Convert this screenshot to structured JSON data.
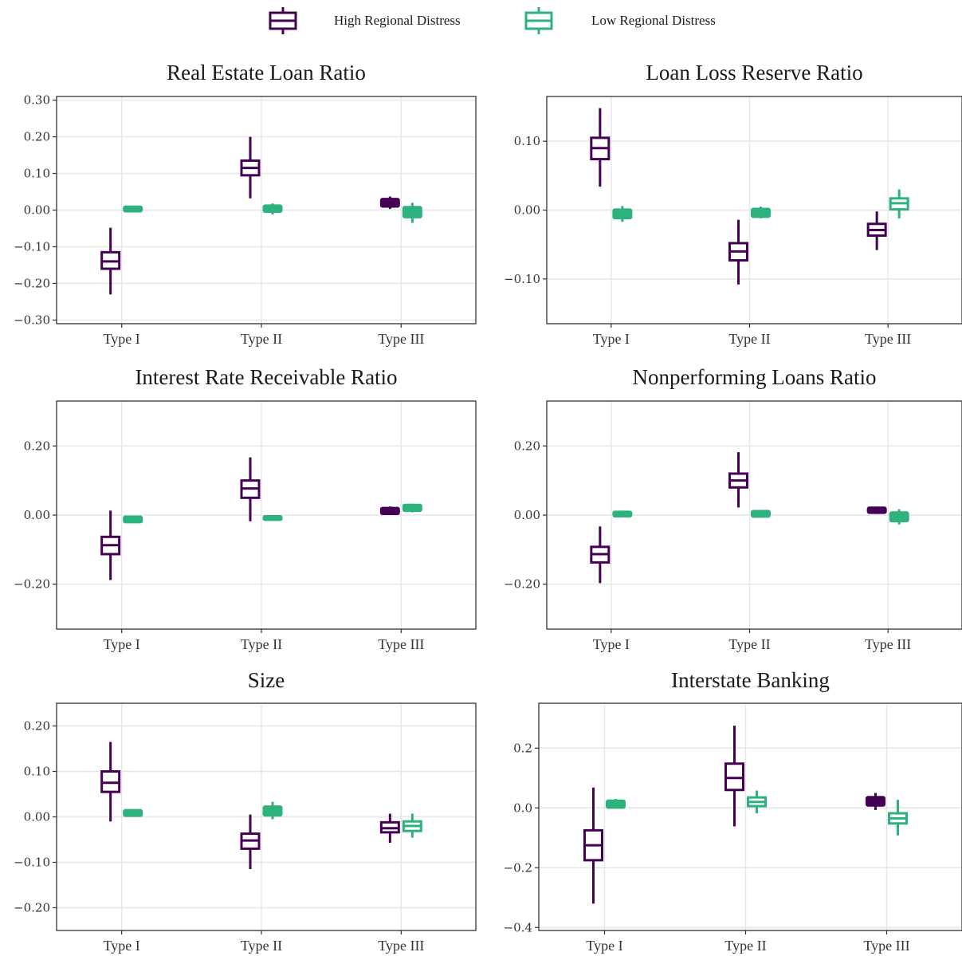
{
  "colors": {
    "high": "#440154",
    "low": "#2db27d",
    "grid": "#e6e6e6",
    "frame": "#333333"
  },
  "legend": [
    {
      "label": "High Regional Distress",
      "color": "#440154"
    },
    {
      "label": "Low Regional Distress",
      "color": "#2db27d"
    }
  ],
  "chart_data": [
    {
      "type": "boxplot",
      "title": "Real Estate Loan Ratio",
      "categories": [
        "Type I",
        "Type II",
        "Type III"
      ],
      "ylim": [
        -0.31,
        0.31
      ],
      "yticks": [
        -0.3,
        -0.2,
        -0.1,
        0.0,
        0.1,
        0.2,
        0.3
      ],
      "yticklabels": [
        "−0.30",
        "−0.20",
        "−0.10",
        "0.00",
        "0.10",
        "0.20",
        "0.30"
      ],
      "series": [
        {
          "name": "High Regional Distress",
          "boxes": [
            {
              "whislo": -0.23,
              "q1": -0.16,
              "med": -0.14,
              "q3": -0.115,
              "whishi": -0.048
            },
            {
              "whislo": 0.032,
              "q1": 0.095,
              "med": 0.115,
              "q3": 0.135,
              "whishi": 0.2
            },
            {
              "whislo": 0.003,
              "q1": 0.013,
              "med": 0.02,
              "q3": 0.027,
              "whishi": 0.037
            }
          ]
        },
        {
          "name": "Low Regional Distress",
          "boxes": [
            {
              "whislo": -0.004,
              "q1": 0.0,
              "med": 0.003,
              "q3": 0.006,
              "whishi": 0.01
            },
            {
              "whislo": -0.012,
              "q1": -0.001,
              "med": 0.004,
              "q3": 0.009,
              "whishi": 0.018
            },
            {
              "whislo": -0.035,
              "q1": -0.016,
              "med": -0.006,
              "q3": 0.005,
              "whishi": 0.02
            }
          ]
        }
      ]
    },
    {
      "type": "boxplot",
      "title": "Loan Loss Reserve Ratio",
      "categories": [
        "Type I",
        "Type II",
        "Type III"
      ],
      "ylim": [
        -0.165,
        0.165
      ],
      "yticks": [
        -0.1,
        0.0,
        0.1
      ],
      "yticklabels": [
        "−0.10",
        "0.00",
        "0.10"
      ],
      "series": [
        {
          "name": "High Regional Distress",
          "boxes": [
            {
              "whislo": 0.034,
              "q1": 0.074,
              "med": 0.09,
              "q3": 0.105,
              "whishi": 0.148
            },
            {
              "whislo": -0.108,
              "q1": -0.073,
              "med": -0.06,
              "q3": -0.048,
              "whishi": -0.014
            },
            {
              "whislo": -0.058,
              "q1": -0.037,
              "med": -0.029,
              "q3": -0.02,
              "whishi": -0.002
            }
          ]
        },
        {
          "name": "Low Regional Distress",
          "boxes": [
            {
              "whislo": -0.017,
              "q1": -0.01,
              "med": -0.005,
              "q3": -0.001,
              "whishi": 0.006
            },
            {
              "whislo": -0.012,
              "q1": -0.008,
              "med": -0.004,
              "q3": 0.0,
              "whishi": 0.005
            },
            {
              "whislo": -0.012,
              "q1": 0.001,
              "med": 0.01,
              "q3": 0.017,
              "whishi": 0.03
            }
          ]
        }
      ]
    },
    {
      "type": "boxplot",
      "title": "Interest Rate Receivable Ratio",
      "categories": [
        "Type I",
        "Type II",
        "Type III"
      ],
      "ylim": [
        -0.33,
        0.33
      ],
      "yticks": [
        -0.2,
        0.0,
        0.2
      ],
      "yticklabels": [
        "−0.20",
        "0.00",
        "0.20"
      ],
      "series": [
        {
          "name": "High Regional Distress",
          "boxes": [
            {
              "whislo": -0.188,
              "q1": -0.113,
              "med": -0.087,
              "q3": -0.063,
              "whishi": 0.013
            },
            {
              "whislo": -0.018,
              "q1": 0.05,
              "med": 0.077,
              "q3": 0.1,
              "whishi": 0.167
            },
            {
              "whislo": 0.0,
              "q1": 0.007,
              "med": 0.012,
              "q3": 0.017,
              "whishi": 0.025
            }
          ]
        },
        {
          "name": "Low Regional Distress",
          "boxes": [
            {
              "whislo": -0.02,
              "q1": -0.017,
              "med": -0.013,
              "q3": -0.008,
              "whishi": -0.002
            },
            {
              "whislo": -0.012,
              "q1": -0.01,
              "med": -0.009,
              "q3": -0.007,
              "whishi": -0.006
            },
            {
              "whislo": 0.008,
              "q1": 0.016,
              "med": 0.021,
              "q3": 0.026,
              "whishi": 0.033
            }
          ]
        }
      ]
    },
    {
      "type": "boxplot",
      "title": "Nonperforming Loans Ratio",
      "categories": [
        "Type I",
        "Type II",
        "Type III"
      ],
      "ylim": [
        -0.33,
        0.33
      ],
      "yticks": [
        -0.2,
        0.0,
        0.2
      ],
      "yticklabels": [
        "−0.20",
        "0.00",
        "0.20"
      ],
      "series": [
        {
          "name": "High Regional Distress",
          "boxes": [
            {
              "whislo": -0.197,
              "q1": -0.137,
              "med": -0.113,
              "q3": -0.092,
              "whishi": -0.033
            },
            {
              "whislo": 0.022,
              "q1": 0.08,
              "med": 0.1,
              "q3": 0.12,
              "whishi": 0.182
            },
            {
              "whislo": 0.006,
              "q1": 0.01,
              "med": 0.014,
              "q3": 0.018,
              "whishi": 0.023
            }
          ]
        },
        {
          "name": "Low Regional Distress",
          "boxes": [
            {
              "whislo": -0.003,
              "q1": 0.0,
              "med": 0.003,
              "q3": 0.006,
              "whishi": 0.01
            },
            {
              "whislo": -0.007,
              "q1": -0.001,
              "med": 0.004,
              "q3": 0.008,
              "whishi": 0.013
            },
            {
              "whislo": -0.027,
              "q1": -0.014,
              "med": -0.005,
              "q3": 0.004,
              "whishi": 0.017
            }
          ]
        }
      ]
    },
    {
      "type": "boxplot",
      "title": "Size",
      "categories": [
        "Type I",
        "Type II",
        "Type III"
      ],
      "ylim": [
        -0.25,
        0.25
      ],
      "yticks": [
        -0.2,
        -0.1,
        0.0,
        0.1,
        0.2
      ],
      "yticklabels": [
        "−0.20",
        "−0.10",
        "0.00",
        "0.10",
        "0.20"
      ],
      "series": [
        {
          "name": "High Regional Distress",
          "boxes": [
            {
              "whislo": -0.01,
              "q1": 0.055,
              "med": 0.075,
              "q3": 0.1,
              "whishi": 0.165
            },
            {
              "whislo": -0.115,
              "q1": -0.07,
              "med": -0.052,
              "q3": -0.037,
              "whishi": 0.005
            },
            {
              "whislo": -0.057,
              "q1": -0.034,
              "med": -0.025,
              "q3": -0.012,
              "whishi": 0.007
            }
          ]
        },
        {
          "name": "Low Regional Distress",
          "boxes": [
            {
              "whislo": 0.002,
              "q1": 0.005,
              "med": 0.008,
              "q3": 0.012,
              "whishi": 0.016
            },
            {
              "whislo": -0.005,
              "q1": 0.006,
              "med": 0.014,
              "q3": 0.02,
              "whishi": 0.033
            },
            {
              "whislo": -0.046,
              "q1": -0.031,
              "med": -0.02,
              "q3": -0.01,
              "whishi": 0.007
            }
          ]
        }
      ]
    },
    {
      "type": "boxplot",
      "title": "Interstate Banking",
      "categories": [
        "Type I",
        "Type II",
        "Type III"
      ],
      "ylim": [
        -0.41,
        0.35
      ],
      "yticks": [
        -0.4,
        -0.2,
        0.0,
        0.2
      ],
      "yticklabels": [
        "−0.4",
        "−0.2",
        "0.0",
        "0.2"
      ],
      "series": [
        {
          "name": "High Regional Distress",
          "boxes": [
            {
              "whislo": -0.32,
              "q1": -0.175,
              "med": -0.125,
              "q3": -0.075,
              "whishi": 0.068
            },
            {
              "whislo": -0.062,
              "q1": 0.06,
              "med": 0.1,
              "q3": 0.148,
              "whishi": 0.275
            },
            {
              "whislo": -0.007,
              "q1": 0.012,
              "med": 0.02,
              "q3": 0.032,
              "whishi": 0.05
            }
          ]
        },
        {
          "name": "Low Regional Distress",
          "boxes": [
            {
              "whislo": 0.0,
              "q1": 0.005,
              "med": 0.012,
              "q3": 0.02,
              "whishi": 0.03
            },
            {
              "whislo": -0.018,
              "q1": 0.006,
              "med": 0.02,
              "q3": 0.035,
              "whishi": 0.058
            },
            {
              "whislo": -0.092,
              "q1": -0.052,
              "med": -0.035,
              "q3": -0.018,
              "whishi": 0.027
            }
          ]
        }
      ]
    }
  ]
}
